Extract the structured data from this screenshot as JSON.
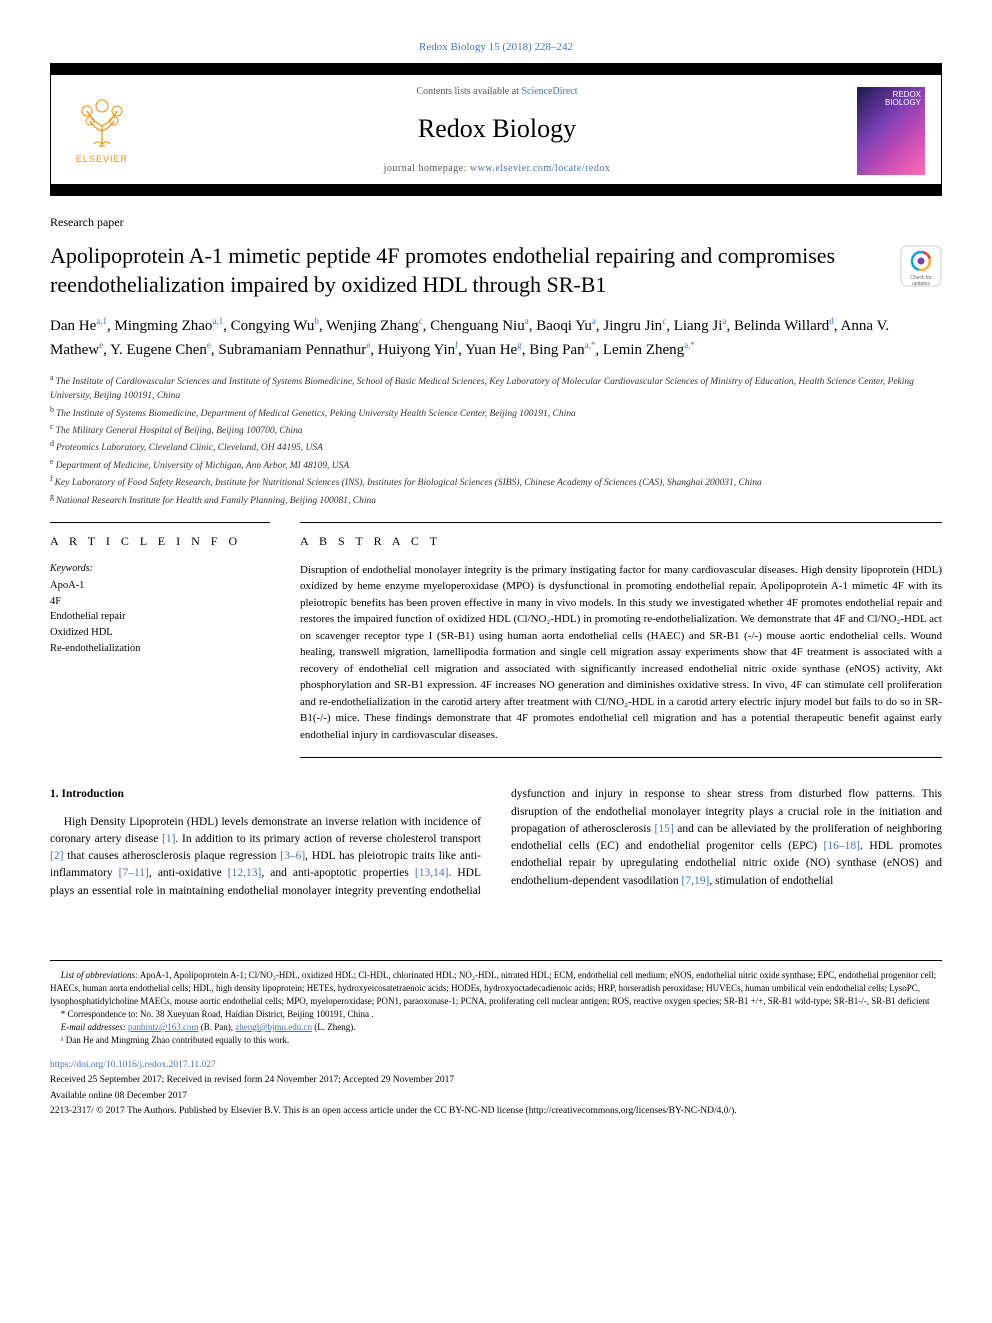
{
  "journal_ref": "Redox Biology 15 (2018) 228–242",
  "header": {
    "contents_pre": "Contents lists available at ",
    "contents_link": "ScienceDirect",
    "journal_name": "Redox Biology",
    "homepage_pre": "journal homepage: ",
    "homepage_link": "www.elsevier.com/locate/redox",
    "elsevier_label": "ELSEVIER",
    "cover_label_top": "REDOX",
    "cover_label_bottom": "BIOLOGY"
  },
  "article_type": "Research paper",
  "title": "Apolipoprotein A-1 mimetic peptide 4F promotes endothelial repairing and compromises reendothelialization impaired by oxidized HDL through SR-B1",
  "crossmark_label": "Check for updates",
  "authors": [
    {
      "name": "Dan He",
      "sup": "a,1"
    },
    {
      "name": "Mingming Zhao",
      "sup": "a,1"
    },
    {
      "name": "Congying Wu",
      "sup": "b"
    },
    {
      "name": "Wenjing Zhang",
      "sup": "c"
    },
    {
      "name": "Chenguang Niu",
      "sup": "a"
    },
    {
      "name": "Baoqi Yu",
      "sup": "a"
    },
    {
      "name": "Jingru Jin",
      "sup": "c"
    },
    {
      "name": "Liang Ji",
      "sup": "a"
    },
    {
      "name": "Belinda Willard",
      "sup": "d"
    },
    {
      "name": "Anna V. Mathew",
      "sup": "e"
    },
    {
      "name": "Y. Eugene Chen",
      "sup": "e"
    },
    {
      "name": "Subramaniam Pennathur",
      "sup": "e"
    },
    {
      "name": "Huiyong Yin",
      "sup": "f"
    },
    {
      "name": "Yuan He",
      "sup": "g"
    },
    {
      "name": "Bing Pan",
      "sup": "a,*"
    },
    {
      "name": "Lemin Zheng",
      "sup": "a,*"
    }
  ],
  "affiliations": [
    {
      "sup": "a",
      "text": "The Institute of Cardiovascular Sciences and Institute of Systems Biomedicine, School of Basic Medical Sciences, Key Laboratory of Molecular Cardiovascular Sciences of Ministry of Education, Health Science Center, Peking University, Beijing 100191, China"
    },
    {
      "sup": "b",
      "text": "The Institute of Systems Biomedicine, Department of Medical Genetics, Peking University Health Science Center, Beijing 100191, China"
    },
    {
      "sup": "c",
      "text": "The Military General Hospital of Beijing, Beijing 100700, China"
    },
    {
      "sup": "d",
      "text": "Proteomics Laboratory, Cleveland Clinic, Cleveland, OH 44195, USA"
    },
    {
      "sup": "e",
      "text": "Department of Medicine, University of Michigan, Ann Arbor, MI 48109, USA"
    },
    {
      "sup": "f",
      "text": "Key Laboratory of Food Safety Research, Institute for Nutritional Sciences (INS), Institutes for Biological Sciences (SIBS), Chinese Academy of Sciences (CAS), Shanghai 200031, China"
    },
    {
      "sup": "g",
      "text": "National Research Institute for Health and Family Planning, Beijing 100081, China"
    }
  ],
  "info_header": "A R T I C L E  I N F O",
  "abstract_header": "A B S T R A C T",
  "keywords_label": "Keywords:",
  "keywords": [
    "ApoA-1",
    "4F",
    "Endothelial repair",
    "Oxidized HDL",
    "Re-endothelialization"
  ],
  "abstract": "Disruption of endothelial monolayer integrity is the primary instigating factor for many cardiovascular diseases. High density lipoprotein (HDL) oxidized by heme enzyme myeloperoxidase (MPO) is dysfunctional in promoting endothelial repair. Apolipoprotein A-1 mimetic 4F with its pleiotropic benefits has been proven effective in many in vivo models. In this study we investigated whether 4F promotes endothelial repair and restores the impaired function of oxidized HDL (Cl/NO₂-HDL) in promoting re-endothelialization. We demonstrate that 4F and Cl/NO₂-HDL act on scavenger receptor type I (SR-B1) using human aorta endothelial cells (HAEC) and SR-B1 (-/-) mouse aortic endothelial cells. Wound healing, transwell migration, lamellipodia formation and single cell migration assay experiments show that 4F treatment is associated with a recovery of endothelial cell migration and associated with significantly increased endothelial nitric oxide synthase (eNOS) activity, Akt phosphorylation and SR-B1 expression. 4F increases NO generation and diminishes oxidative stress. In vivo, 4F can stimulate cell proliferation and re-endothelialization in the carotid artery after treatment with Cl/NO₂-HDL in a carotid artery electric injury model but fails to do so in SR-B1(-/-) mice. These findings demonstrate that 4F promotes endothelial cell migration and has a potential therapeutic benefit against early endothelial injury in cardiovascular diseases.",
  "intro": {
    "title": "1. Introduction",
    "p1_pre": "High Density Lipoprotein (HDL) levels demonstrate an inverse relation with incidence of coronary artery disease ",
    "c1": "[1]",
    "p1_mid1": ". In addition to its primary action of reverse cholesterol transport ",
    "c2": "[2]",
    "p1_mid2": " that causes atherosclerosis plaque regression ",
    "c3": "[3–6]",
    "p1_mid3": ", HDL has pleiotropic traits like anti-inflammatory ",
    "c4": "[7–11]",
    "p1_mid4": ", anti-oxidative ",
    "c5": "[12,13]",
    "p1_mid5": ", and anti-apoptotic properties ",
    "c6": "[13,14]",
    "p1_end": ". HDL plays an essential role in maintaining endothelial ",
    "p2_pre": "monolayer integrity preventing endothelial dysfunction and injury in response to shear stress from disturbed flow patterns. This disruption of the endothelial monolayer integrity plays a crucial role in the initiation and propagation of atherosclerosis ",
    "c7": "[15]",
    "p2_mid1": " and can be alleviated by the proliferation of neighboring endothelial cells (EC) and endothelial progenitor cells (EPC) ",
    "c8": "[16–18]",
    "p2_mid2": ". HDL promotes endothelial repair by upregulating endothelial nitric oxide (NO) synthase (eNOS) and endothelium-dependent vasodilation ",
    "c9": "[7,19]",
    "p2_end": ", stimulation of endothelial"
  },
  "footnotes": {
    "abbrev_label": "List of abbreviations:",
    "abbrev_text": " ApoA-1, Apolipoprotein A-1; Cl/NO₂-HDL, oxidized HDL; Cl-HDL, chlorinated HDL; NO₂-HDL, nitrated HDL; ECM, endothelial cell medium; eNOS, endothelial nitric oxide synthase; EPC, endothelial progenitor cell; HAECs, human aorta endothelial cells; HDL, high density lipoprotein; HETEs, hydroxyeicosatetraenoic acids; HODEs, hydroxyoctadecadienoic acids; HRP, horseradish peroxidase; HUVECs, human umbilical vein endothelial cells; LysoPC, lysophosphatidylcholine MAECs, mouse aortic endothelial cells; MPO, myeloperoxidase; PON1, paraoxonase-1; PCNA, proliferating cell nuclear antigen; ROS, reactive oxygen species; SR-B1 +/+, SR-B1 wild-type; SR-B1-/-, SR-B1 deficient",
    "corr": "* Correspondence to: No. 38 Xueyuan Road, Haidian District, Beijing 100191, China .",
    "email_label": "E-mail addresses:",
    "email1": "panbintz@163.com",
    "email1_name": " (B. Pan), ",
    "email2": "zhengl@bjmu.edu.cn",
    "email2_name": " (L. Zheng).",
    "contrib": "¹ Dan He and Mingming Zhao contributed equally to this work."
  },
  "doi": "https://doi.org/10.1016/j.redox.2017.11.027",
  "history": "Received 25 September 2017; Received in revised form 24 November 2017; Accepted 29 November 2017",
  "available": "Available online 08 December 2017",
  "copyright": "2213-2317/ © 2017 The Authors. Published by Elsevier B.V. This is an open access article under the CC BY-NC-ND license (http://creativecommons.org/licenses/BY-NC-ND/4.0/).",
  "colors": {
    "link": "#4a6fb5",
    "elsevier_orange": "#f38b00"
  }
}
